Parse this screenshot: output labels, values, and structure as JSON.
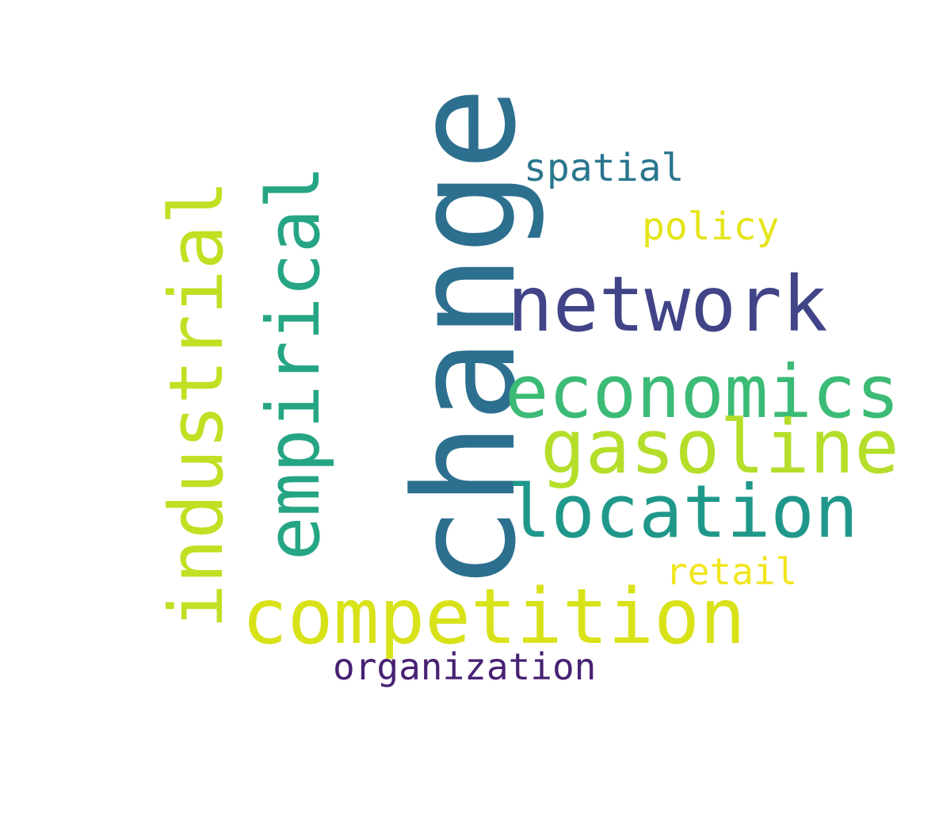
{
  "background": "#ffffff",
  "words": [
    {
      "id": "change",
      "text": "change",
      "color": "#2d6f8e",
      "orientation": "vertical"
    },
    {
      "id": "network",
      "text": "network",
      "color": "#414487",
      "orientation": "horizontal"
    },
    {
      "id": "economics",
      "text": "economics",
      "color": "#3bbb75",
      "orientation": "horizontal"
    },
    {
      "id": "gasoline",
      "text": "gasoline",
      "color": "#b5de2b",
      "orientation": "horizontal"
    },
    {
      "id": "location",
      "text": "location",
      "color": "#1f988b",
      "orientation": "horizontal"
    },
    {
      "id": "competition",
      "text": "competition",
      "color": "#d8e219",
      "orientation": "horizontal"
    },
    {
      "id": "empirical",
      "text": "empirical",
      "color": "#25a584",
      "orientation": "vertical"
    },
    {
      "id": "industrial",
      "text": "industrial",
      "color": "#c2df23",
      "orientation": "vertical"
    },
    {
      "id": "spatial",
      "text": "spatial",
      "color": "#2a768e",
      "orientation": "horizontal"
    },
    {
      "id": "policy",
      "text": "policy",
      "color": "#e5e419",
      "orientation": "horizontal"
    },
    {
      "id": "retail",
      "text": "retail",
      "color": "#f1e51d",
      "orientation": "horizontal"
    },
    {
      "id": "organization",
      "text": "organization",
      "color": "#482173",
      "orientation": "horizontal"
    }
  ]
}
